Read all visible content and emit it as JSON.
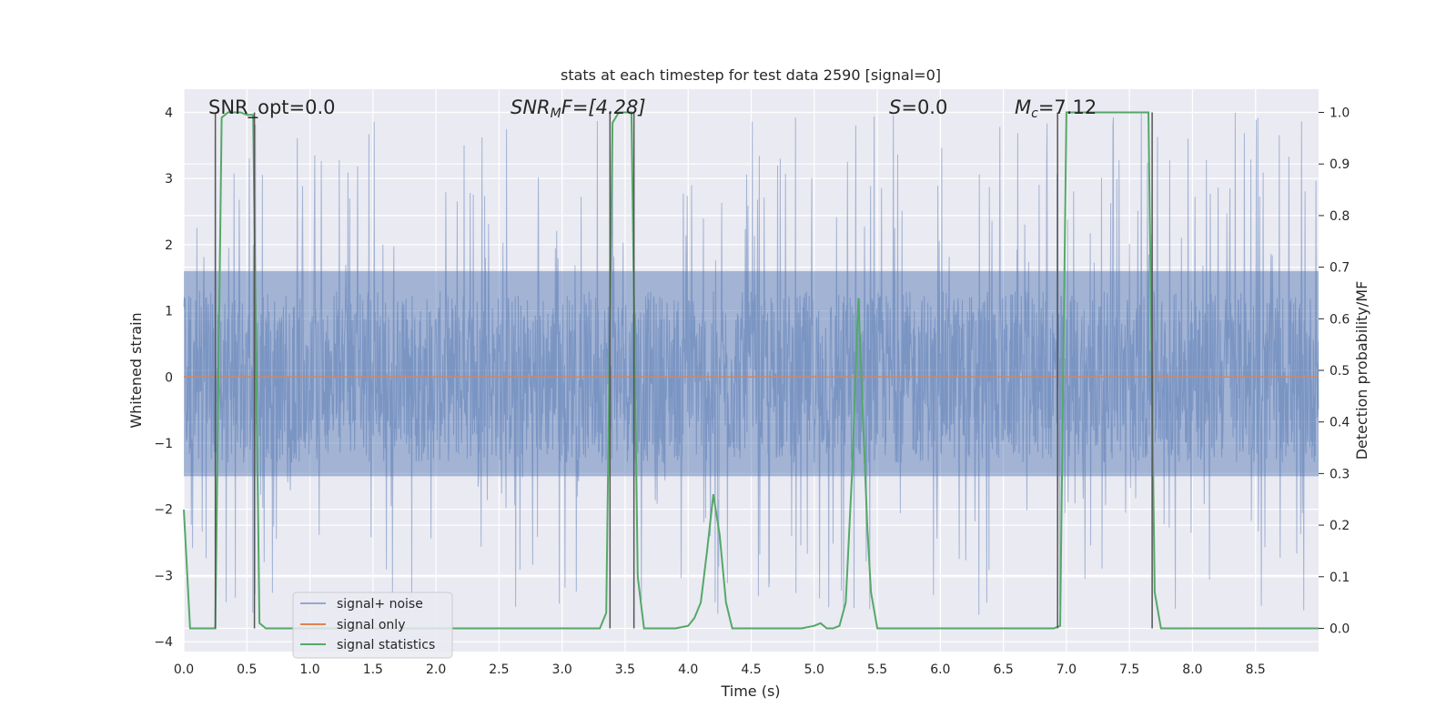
{
  "chart_data": {
    "type": "line",
    "title": "stats at each timestep for test data 2590 [signal=0]",
    "xlabel": "Time (s)",
    "ylabel": "Whitened strain",
    "y2label": "Detection probability/MF",
    "xlim": [
      0,
      9
    ],
    "ylim": [
      -4.15,
      4.35
    ],
    "y2lim": [
      -0.045,
      1.045
    ],
    "xticks": [
      "0.0",
      "0.5",
      "1.0",
      "1.5",
      "2.0",
      "2.5",
      "3.0",
      "3.5",
      "4.0",
      "4.5",
      "5.0",
      "5.5",
      "6.0",
      "6.5",
      "7.0",
      "7.5",
      "8.0",
      "8.5"
    ],
    "yticks": [
      "4",
      "3",
      "2",
      "1",
      "0",
      "−1",
      "−2",
      "−3",
      "−4"
    ],
    "y2ticks": [
      "1.0",
      "0.9",
      "0.8",
      "0.7",
      "0.6",
      "0.5",
      "0.4",
      "0.3",
      "0.2",
      "0.1",
      "0.0"
    ],
    "grid": true,
    "legend_position": "lower-left",
    "annotations": {
      "snr_opt": "SNR_opt=0.0",
      "snr_mf_main": "SNR",
      "snr_mf_sub": "M",
      "snr_mf_rest": "F=[4.28]",
      "s_main": "S",
      "s_rest": "=0.0",
      "mc_main": "M",
      "mc_sub": "c",
      "mc_rest": "=7.12"
    },
    "series": [
      {
        "name": "signal+ noise",
        "color": "#4c72b0",
        "kind": "noise",
        "typical_range": [
          -1.5,
          1.6
        ],
        "peak_range": [
          -3.6,
          4.0
        ]
      },
      {
        "name": "signal only",
        "color": "#dd8452",
        "x": [
          0,
          9
        ],
        "y": [
          0,
          0
        ]
      },
      {
        "name": "signal statistics",
        "color": "#55a868",
        "axis": "right",
        "x": [
          0.0,
          0.05,
          0.1,
          0.15,
          0.2,
          0.25,
          0.3,
          0.35,
          0.4,
          0.45,
          0.5,
          0.55,
          0.6,
          0.65,
          0.7,
          0.75,
          0.8,
          3.2,
          3.3,
          3.35,
          3.4,
          3.45,
          3.5,
          3.55,
          3.6,
          3.65,
          3.7,
          3.8,
          3.9,
          4.0,
          4.05,
          4.1,
          4.15,
          4.2,
          4.25,
          4.3,
          4.35,
          4.4,
          4.45,
          4.5,
          4.6,
          4.7,
          4.8,
          4.9,
          5.0,
          5.05,
          5.1,
          5.15,
          5.2,
          5.25,
          5.3,
          5.35,
          5.38,
          5.42,
          5.45,
          5.5,
          5.55,
          6.9,
          6.95,
          7.0,
          7.05,
          7.1,
          7.6,
          7.65,
          7.7,
          7.75,
          7.8,
          7.85,
          8.0,
          9.0
        ],
        "y": [
          0.23,
          0.0,
          0.0,
          0.0,
          0.0,
          0.0,
          0.99,
          1.0,
          1.0,
          1.0,
          0.995,
          0.995,
          0.01,
          0.0,
          0.0,
          0.0,
          0.0,
          0.0,
          0.0,
          0.03,
          0.98,
          1.0,
          1.0,
          1.0,
          0.1,
          0.0,
          0.0,
          0.0,
          0.0,
          0.005,
          0.02,
          0.05,
          0.15,
          0.26,
          0.18,
          0.05,
          0.0,
          0.0,
          0.0,
          0.0,
          0.0,
          0.0,
          0.0,
          0.0,
          0.005,
          0.01,
          0.0,
          0.0,
          0.005,
          0.05,
          0.3,
          0.64,
          0.45,
          0.2,
          0.07,
          0.0,
          0.0,
          0.0,
          0.005,
          1.0,
          1.0,
          1.0,
          1.0,
          1.0,
          0.07,
          0.0,
          0.0,
          0.0,
          0.0,
          0.0
        ]
      }
    ],
    "vertical_markers_x": [
      0.25,
      0.56,
      3.38,
      3.57,
      6.93,
      7.68
    ]
  }
}
